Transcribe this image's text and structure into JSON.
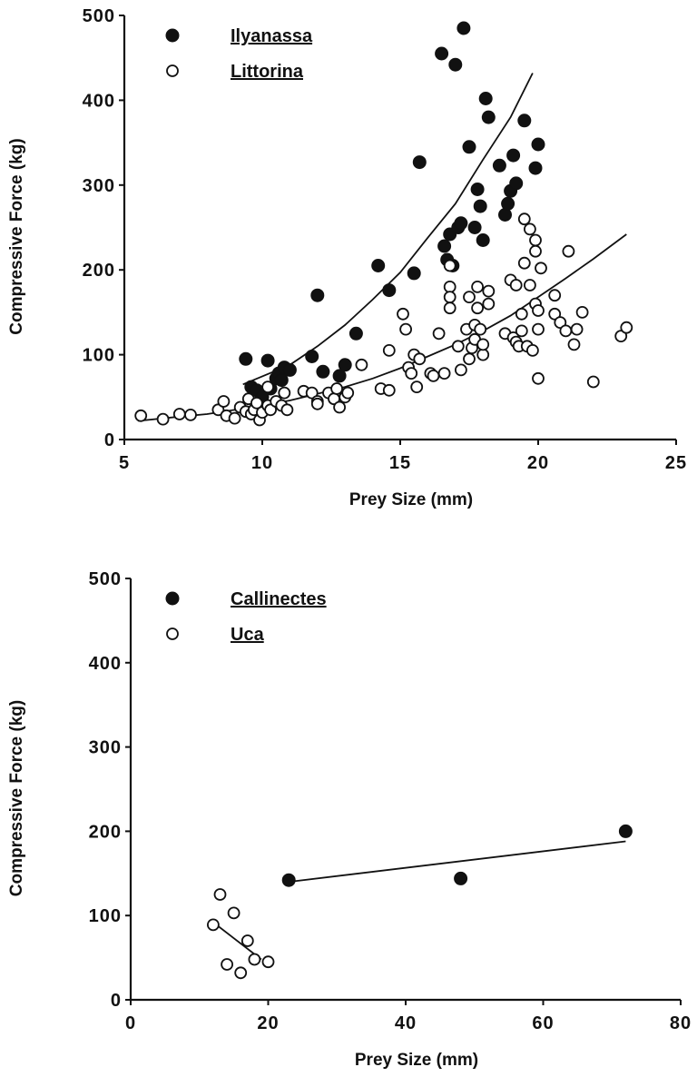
{
  "chart_data": [
    {
      "type": "scatter",
      "xlabel": "Prey Size (mm)",
      "ylabel": "Compressive Force (kg)",
      "xlim": [
        5,
        25
      ],
      "ylim": [
        0,
        500
      ],
      "xticks": [
        5,
        10,
        15,
        20,
        25
      ],
      "yticks": [
        0,
        100,
        200,
        300,
        400,
        500
      ],
      "xtick_labels": [
        "5",
        "10",
        "15",
        "20",
        "25"
      ],
      "ytick_labels": [
        "0",
        "100",
        "200",
        "300",
        "400",
        "500"
      ],
      "legend_position": "top-left",
      "grid": false,
      "series": [
        {
          "name": "Ilyanassa",
          "marker": "filled-circle",
          "points": [
            [
              9.4,
              95
            ],
            [
              9.6,
              62
            ],
            [
              9.8,
              58
            ],
            [
              10.0,
              50
            ],
            [
              10.2,
              93
            ],
            [
              10.3,
              60
            ],
            [
              10.5,
              72
            ],
            [
              10.6,
              78
            ],
            [
              10.7,
              70
            ],
            [
              10.8,
              85
            ],
            [
              11.0,
              82
            ],
            [
              11.8,
              98
            ],
            [
              12.0,
              170
            ],
            [
              12.2,
              80
            ],
            [
              12.8,
              75
            ],
            [
              13.0,
              88
            ],
            [
              13.4,
              125
            ],
            [
              14.2,
              205
            ],
            [
              14.6,
              176
            ],
            [
              15.5,
              196
            ],
            [
              15.7,
              327
            ],
            [
              16.5,
              455
            ],
            [
              16.6,
              228
            ],
            [
              16.7,
              212
            ],
            [
              16.8,
              242
            ],
            [
              16.9,
              205
            ],
            [
              17.0,
              442
            ],
            [
              17.1,
              250
            ],
            [
              17.3,
              485
            ],
            [
              17.2,
              255
            ],
            [
              17.5,
              345
            ],
            [
              17.7,
              250
            ],
            [
              17.8,
              295
            ],
            [
              17.9,
              275
            ],
            [
              18.0,
              235
            ],
            [
              18.1,
              402
            ],
            [
              18.2,
              380
            ],
            [
              18.6,
              323
            ],
            [
              18.8,
              265
            ],
            [
              18.9,
              278
            ],
            [
              19.0,
              293
            ],
            [
              19.1,
              335
            ],
            [
              19.2,
              302
            ],
            [
              19.5,
              376
            ],
            [
              19.9,
              320
            ],
            [
              20.0,
              348
            ]
          ]
        },
        {
          "name": "Littorina",
          "marker": "open-circle",
          "points": [
            [
              5.6,
              28
            ],
            [
              6.4,
              24
            ],
            [
              7.0,
              30
            ],
            [
              7.4,
              29
            ],
            [
              8.4,
              35
            ],
            [
              8.6,
              45
            ],
            [
              8.7,
              28
            ],
            [
              9.0,
              25
            ],
            [
              9.2,
              38
            ],
            [
              9.4,
              33
            ],
            [
              9.5,
              48
            ],
            [
              9.6,
              30
            ],
            [
              9.7,
              35
            ],
            [
              9.8,
              43
            ],
            [
              9.9,
              23
            ],
            [
              10.0,
              32
            ],
            [
              10.2,
              62
            ],
            [
              10.2,
              40
            ],
            [
              10.3,
              35
            ],
            [
              10.5,
              45
            ],
            [
              10.7,
              40
            ],
            [
              10.8,
              55
            ],
            [
              10.9,
              35
            ],
            [
              11.5,
              57
            ],
            [
              11.8,
              55
            ],
            [
              12.0,
              45
            ],
            [
              12.0,
              42
            ],
            [
              12.4,
              55
            ],
            [
              12.6,
              48
            ],
            [
              12.7,
              60
            ],
            [
              12.8,
              38
            ],
            [
              13.0,
              50
            ],
            [
              13.1,
              55
            ],
            [
              13.6,
              88
            ],
            [
              14.3,
              60
            ],
            [
              14.6,
              58
            ],
            [
              14.6,
              105
            ],
            [
              15.1,
              148
            ],
            [
              15.2,
              130
            ],
            [
              15.3,
              85
            ],
            [
              15.4,
              78
            ],
            [
              15.5,
              100
            ],
            [
              15.7,
              95
            ],
            [
              15.6,
              62
            ],
            [
              16.1,
              78
            ],
            [
              16.2,
              75
            ],
            [
              16.4,
              125
            ],
            [
              16.6,
              78
            ],
            [
              16.8,
              205
            ],
            [
              16.8,
              180
            ],
            [
              16.8,
              168
            ],
            [
              16.8,
              155
            ],
            [
              17.1,
              110
            ],
            [
              17.2,
              82
            ],
            [
              17.4,
              130
            ],
            [
              17.5,
              168
            ],
            [
              17.5,
              95
            ],
            [
              17.6,
              108
            ],
            [
              17.7,
              118
            ],
            [
              17.7,
              135
            ],
            [
              17.8,
              180
            ],
            [
              17.8,
              155
            ],
            [
              17.9,
              130
            ],
            [
              18.0,
              100
            ],
            [
              18.0,
              112
            ],
            [
              18.2,
              175
            ],
            [
              18.2,
              160
            ],
            [
              18.8,
              125
            ],
            [
              19.0,
              188
            ],
            [
              19.1,
              120
            ],
            [
              19.2,
              115
            ],
            [
              19.2,
              182
            ],
            [
              19.3,
              110
            ],
            [
              19.4,
              128
            ],
            [
              19.4,
              148
            ],
            [
              19.5,
              260
            ],
            [
              19.5,
              208
            ],
            [
              19.6,
              110
            ],
            [
              19.7,
              182
            ],
            [
              19.7,
              248
            ],
            [
              19.8,
              105
            ],
            [
              19.9,
              235
            ],
            [
              19.9,
              222
            ],
            [
              19.9,
              160
            ],
            [
              20.0,
              130
            ],
            [
              20.0,
              152
            ],
            [
              20.0,
              72
            ],
            [
              20.1,
              202
            ],
            [
              20.6,
              170
            ],
            [
              20.6,
              148
            ],
            [
              20.8,
              138
            ],
            [
              21.0,
              128
            ],
            [
              21.1,
              222
            ],
            [
              21.3,
              112
            ],
            [
              21.4,
              130
            ],
            [
              21.6,
              150
            ],
            [
              22.0,
              68
            ],
            [
              23.0,
              122
            ],
            [
              23.2,
              132
            ]
          ]
        }
      ],
      "fit_curves": [
        {
          "series": "Ilyanassa",
          "points": [
            [
              9.3,
              65
            ],
            [
              11,
              88
            ],
            [
              12,
              110
            ],
            [
              13,
              135
            ],
            [
              14,
              165
            ],
            [
              15,
              197
            ],
            [
              16,
              238
            ],
            [
              17,
              278
            ],
            [
              18,
              330
            ],
            [
              19,
              380
            ],
            [
              19.8,
              432
            ]
          ]
        },
        {
          "series": "Littorina",
          "points": [
            [
              5.5,
              22
            ],
            [
              7,
              27
            ],
            [
              8,
              30
            ],
            [
              9,
              35
            ],
            [
              10,
              40
            ],
            [
              11,
              46
            ],
            [
              12,
              54
            ],
            [
              13,
              62
            ],
            [
              14,
              72
            ],
            [
              15,
              84
            ],
            [
              16,
              98
            ],
            [
              17,
              112
            ],
            [
              18,
              128
            ],
            [
              19,
              146
            ],
            [
              20,
              168
            ],
            [
              21,
              190
            ],
            [
              22,
              213
            ],
            [
              23.2,
              242
            ]
          ]
        }
      ]
    },
    {
      "type": "scatter",
      "xlabel": "Prey Size (mm)",
      "ylabel": "Compressive Force (kg)",
      "xlim": [
        0,
        80
      ],
      "ylim": [
        0,
        500
      ],
      "xticks": [
        0,
        20,
        40,
        60,
        80
      ],
      "yticks": [
        0,
        100,
        200,
        300,
        400,
        500
      ],
      "xtick_labels": [
        "0",
        "20",
        "40",
        "60",
        "80"
      ],
      "ytick_labels": [
        "0",
        "100",
        "200",
        "300",
        "400",
        "500"
      ],
      "legend_position": "top-left",
      "grid": false,
      "series": [
        {
          "name": "Callinectes",
          "marker": "filled-circle",
          "points": [
            [
              23,
              142
            ],
            [
              48,
              144
            ],
            [
              72,
              200
            ]
          ]
        },
        {
          "name": "Uca",
          "marker": "open-circle",
          "points": [
            [
              12,
              89
            ],
            [
              13,
              125
            ],
            [
              14,
              42
            ],
            [
              15,
              103
            ],
            [
              16,
              32
            ],
            [
              17,
              70
            ],
            [
              18,
              48
            ],
            [
              20,
              45
            ]
          ]
        }
      ],
      "fit_curves": [
        {
          "series": "Callinectes",
          "points": [
            [
              23,
              140
            ],
            [
              72,
              188
            ]
          ]
        },
        {
          "series": "Uca",
          "points": [
            [
              12,
              92
            ],
            [
              19,
              48
            ]
          ]
        }
      ]
    }
  ]
}
